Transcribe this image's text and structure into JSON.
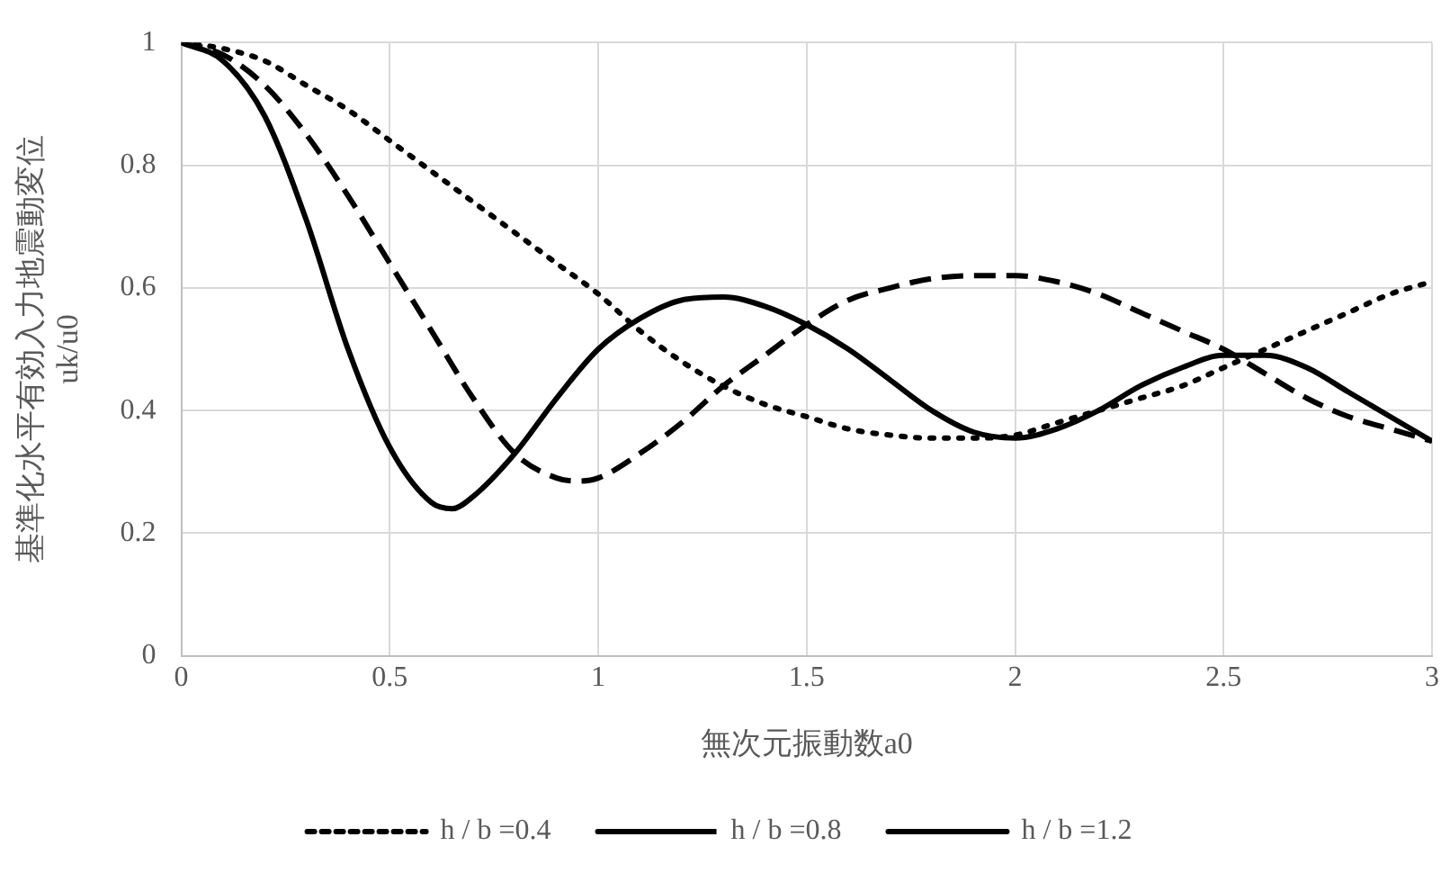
{
  "chart_data": {
    "type": "line",
    "xlabel": "無次元振動数a0",
    "ylabel": "基準化水平有効入力地震動変位\nuk/u0",
    "xlim": [
      0,
      3
    ],
    "xticks": [
      0,
      0.5,
      1,
      1.5,
      2,
      2.5,
      3
    ],
    "ylim": [
      0,
      1
    ],
    "yticks": [
      0,
      0.2,
      0.4,
      0.6,
      0.8,
      1
    ],
    "grid": true,
    "legend": "bottom",
    "marker": "none",
    "series": [
      {
        "name": "h / b =0.4",
        "color": "#000000",
        "line_style": "dotted",
        "x": [
          0,
          0.1,
          0.2,
          0.3,
          0.4,
          0.5,
          0.6,
          0.7,
          0.8,
          0.9,
          1,
          1.1,
          1.2,
          1.3,
          1.4,
          1.5,
          1.6,
          1.7,
          1.8,
          1.9,
          2,
          2.1,
          2.2,
          2.3,
          2.4,
          2.5,
          2.6,
          2.7,
          2.8,
          2.9,
          3
        ],
        "values": [
          1,
          0.99,
          0.97,
          0.93,
          0.89,
          0.84,
          0.79,
          0.74,
          0.69,
          0.64,
          0.59,
          0.53,
          0.48,
          0.44,
          0.41,
          0.39,
          0.37,
          0.36,
          0.355,
          0.355,
          0.36,
          0.38,
          0.4,
          0.42,
          0.44,
          0.47,
          0.5,
          0.53,
          0.56,
          0.59,
          0.61
        ]
      },
      {
        "name": "h / b =0.8",
        "color": "#000000",
        "line_style": "dashed",
        "x": [
          0,
          0.1,
          0.2,
          0.3,
          0.4,
          0.5,
          0.6,
          0.7,
          0.8,
          0.9,
          0.95,
          1,
          1.1,
          1.2,
          1.3,
          1.4,
          1.5,
          1.6,
          1.7,
          1.8,
          1.9,
          2,
          2.1,
          2.2,
          2.3,
          2.4,
          2.5,
          2.6,
          2.7,
          2.8,
          2.9,
          3
        ],
        "values": [
          1,
          0.98,
          0.93,
          0.85,
          0.75,
          0.64,
          0.53,
          0.42,
          0.33,
          0.29,
          0.285,
          0.29,
          0.33,
          0.38,
          0.44,
          0.49,
          0.54,
          0.58,
          0.6,
          0.615,
          0.62,
          0.62,
          0.61,
          0.59,
          0.56,
          0.53,
          0.5,
          0.46,
          0.42,
          0.39,
          0.37,
          0.35
        ]
      },
      {
        "name": "h / b =1.2",
        "color": "#000000",
        "line_style": "solid",
        "x": [
          0,
          0.1,
          0.2,
          0.3,
          0.4,
          0.5,
          0.6,
          0.65,
          0.7,
          0.8,
          0.9,
          1,
          1.1,
          1.2,
          1.3,
          1.4,
          1.5,
          1.6,
          1.7,
          1.8,
          1.9,
          2,
          2.1,
          2.2,
          2.3,
          2.4,
          2.5,
          2.6,
          2.7,
          2.8,
          2.9,
          3
        ],
        "values": [
          1,
          0.97,
          0.88,
          0.71,
          0.5,
          0.34,
          0.25,
          0.24,
          0.26,
          0.33,
          0.42,
          0.5,
          0.55,
          0.58,
          0.585,
          0.57,
          0.54,
          0.5,
          0.45,
          0.4,
          0.365,
          0.355,
          0.37,
          0.4,
          0.44,
          0.47,
          0.49,
          0.49,
          0.47,
          0.43,
          0.39,
          0.35
        ]
      }
    ]
  }
}
